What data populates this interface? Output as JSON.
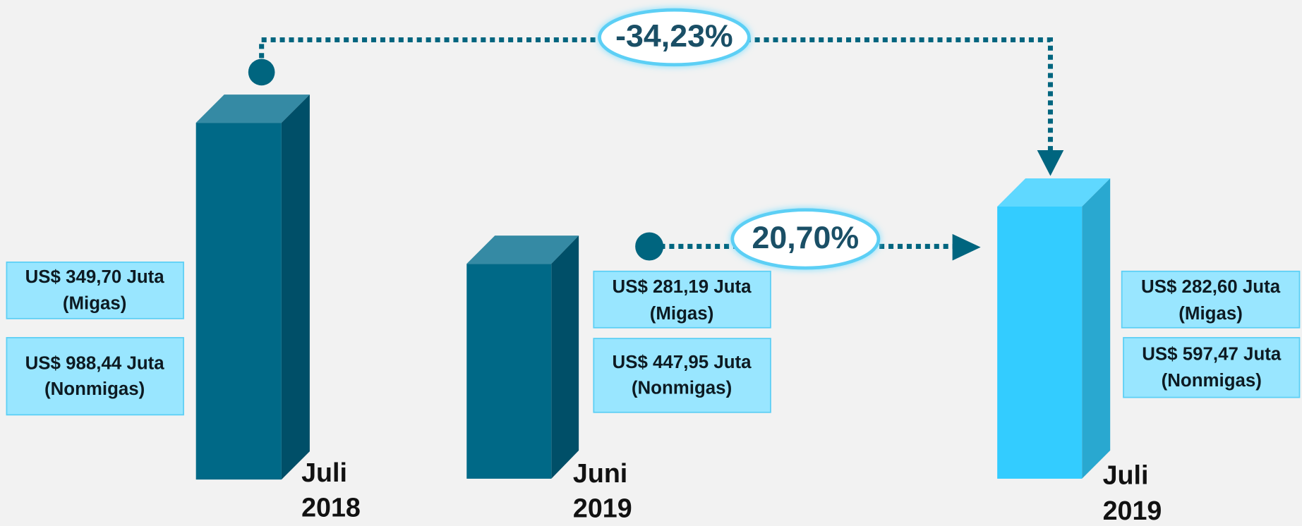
{
  "periods": [
    {
      "label": [
        "Juli",
        "2018"
      ],
      "migas": "US$ 349,70 Juta",
      "migas_note": "(Migas)",
      "nonmigas": "US$ 988,44 Juta",
      "nonmigas_note": "(Nonmigas)"
    },
    {
      "label": [
        "Juni",
        "2019"
      ],
      "migas": "US$ 281,19 Juta",
      "migas_note": "(Migas)",
      "nonmigas": "US$ 447,95 Juta",
      "nonmigas_note": "(Nonmigas)"
    },
    {
      "label": [
        "Juli",
        "2019"
      ],
      "migas": "US$ 282,60 Juta",
      "migas_note": "(Migas)",
      "nonmigas": "US$ 597,47 Juta",
      "nonmigas_note": "(Nonmigas)"
    }
  ],
  "changes": {
    "year_on_year": "-34,23%",
    "month_on_month": "20,70%"
  }
}
